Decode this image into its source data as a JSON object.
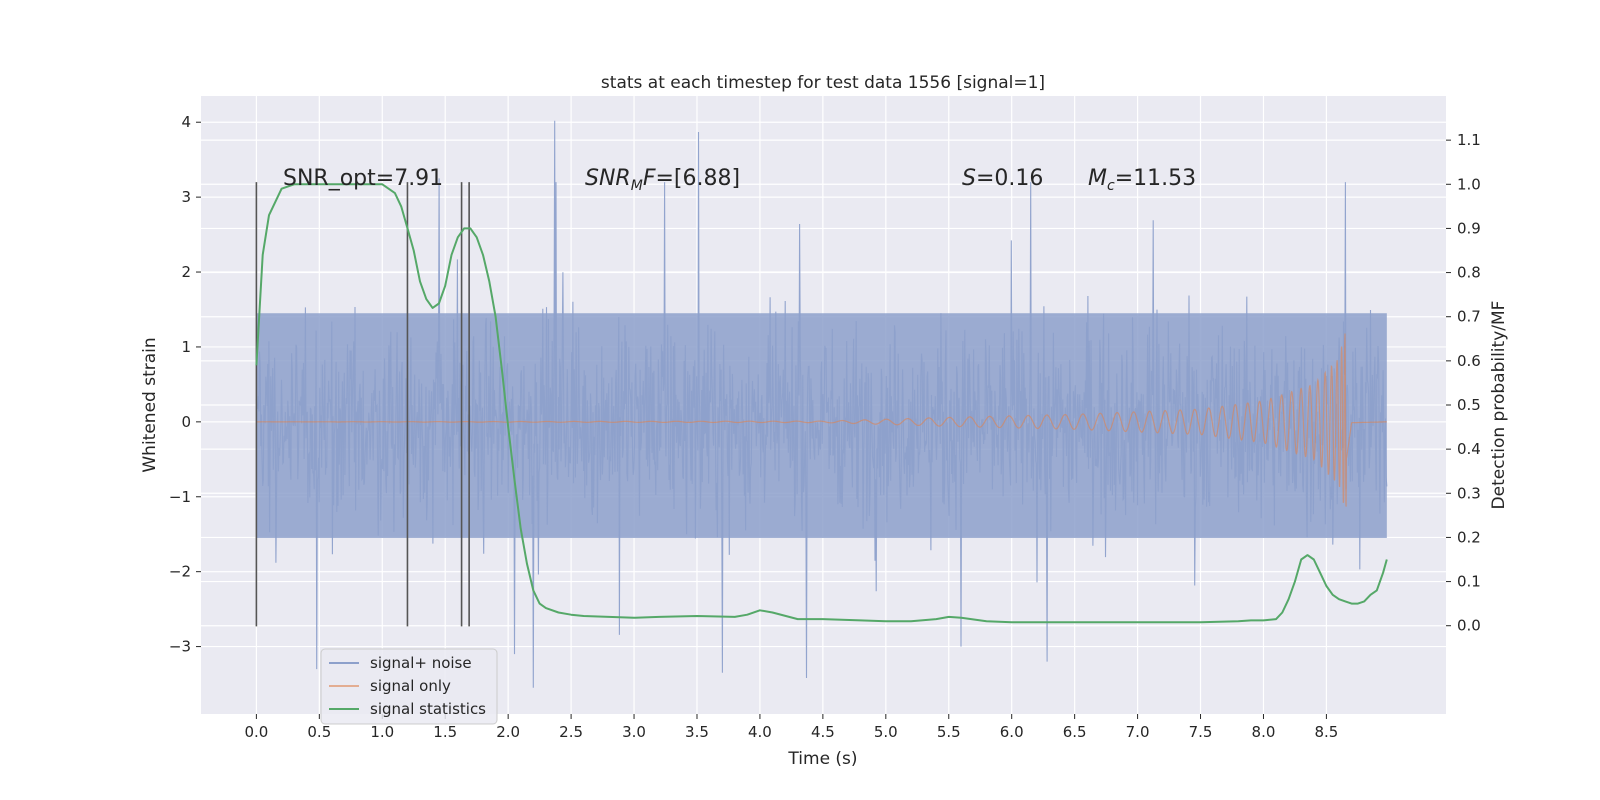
{
  "chart_data": {
    "type": "line",
    "title": "stats at each timestep for test data 1556 [signal=1]",
    "xlabel": "Time (s)",
    "ylabel": "Whitened strain",
    "ylabel_right": "Detection probability/MF",
    "xlim": [
      -0.44,
      9.45
    ],
    "ylim": [
      -3.9,
      4.35
    ],
    "ylim_right": [
      -0.2,
      1.2
    ],
    "x_ticks": [
      "0.0",
      "0.5",
      "1.0",
      "1.5",
      "2.0",
      "2.5",
      "3.0",
      "3.5",
      "4.0",
      "4.5",
      "5.0",
      "5.5",
      "6.0",
      "6.5",
      "7.0",
      "7.5",
      "8.0",
      "8.5"
    ],
    "y_ticks_left": [
      "4",
      "3",
      "2",
      "1",
      "0",
      "−1",
      "−2",
      "−3"
    ],
    "y_ticks_right": [
      "1.1",
      "1.0",
      "0.9",
      "0.8",
      "0.7",
      "0.6",
      "0.5",
      "0.4",
      "0.3",
      "0.2",
      "0.1",
      "0.0"
    ],
    "annotations": {
      "snr_opt": "SNR_opt=7.91",
      "snr_mf_italic": "SNR",
      "snr_mf_sub": "M",
      "snr_mf_italic2": "F",
      "snr_mf_rest": "=[6.88]",
      "s_italic": "S",
      "s_rest": "=0.16",
      "mc_italic": "M",
      "mc_sub": "c",
      "mc_rest": "=11.53"
    },
    "vertical_lines_x": [
      0.0,
      1.2,
      1.63,
      1.69
    ],
    "vertical_lines_range": [
      -2.73,
      3.2
    ],
    "legend": {
      "placement": "lower-left",
      "entries": [
        "signal+ noise",
        "signal only",
        "signal statistics"
      ]
    },
    "colors": {
      "noise": "#8da0cb",
      "signal": "#dd8452",
      "stats": "#55a868",
      "plot_bg": "#eaeaf2",
      "grid": "#ffffff",
      "vline": "#555555"
    },
    "noise_series": {
      "name": "signal+ noise",
      "x_range": [
        0.0,
        8.98
      ],
      "typical_envelope": [
        -1.55,
        1.45
      ],
      "peak_values": [
        {
          "x": 2.37,
          "y": 4.02
        },
        {
          "x": 3.51,
          "y": 3.87
        },
        {
          "x": 2.38,
          "y": 3.2
        },
        {
          "x": 1.45,
          "y": 3.25
        },
        {
          "x": 8.65,
          "y": 3.2
        },
        {
          "x": 2.2,
          "y": -3.55
        },
        {
          "x": 4.37,
          "y": -3.42
        },
        {
          "x": 3.7,
          "y": -3.35
        },
        {
          "x": 0.48,
          "y": -3.3
        },
        {
          "x": 6.28,
          "y": -3.2
        },
        {
          "x": 2.05,
          "y": -3.1
        },
        {
          "x": 5.6,
          "y": -3.0
        }
      ]
    },
    "signal_series": {
      "name": "signal only",
      "description_points": [
        {
          "x": 0.0,
          "amp": 0.0
        },
        {
          "x": 4.5,
          "amp": 0.01
        },
        {
          "x": 5.5,
          "amp": 0.06
        },
        {
          "x": 6.5,
          "amp": 0.1
        },
        {
          "x": 7.5,
          "amp": 0.17
        },
        {
          "x": 8.0,
          "amp": 0.28
        },
        {
          "x": 8.4,
          "amp": 0.5
        },
        {
          "x": 8.6,
          "amp": 0.85
        },
        {
          "x": 8.66,
          "amp": 1.3
        },
        {
          "x": 8.7,
          "amp": 0.03
        },
        {
          "x": 8.98,
          "amp": 0.0
        }
      ]
    },
    "stats_series": {
      "name": "signal statistics",
      "x": [
        0.0,
        0.05,
        0.1,
        0.15,
        0.2,
        0.3,
        0.4,
        0.6,
        0.8,
        1.0,
        1.05,
        1.1,
        1.15,
        1.2,
        1.25,
        1.3,
        1.35,
        1.4,
        1.45,
        1.5,
        1.55,
        1.6,
        1.65,
        1.7,
        1.75,
        1.8,
        1.85,
        1.9,
        1.95,
        2.0,
        2.05,
        2.1,
        2.15,
        2.2,
        2.25,
        2.3,
        2.4,
        2.5,
        2.6,
        2.8,
        3.0,
        3.2,
        3.5,
        3.8,
        3.9,
        4.0,
        4.1,
        4.3,
        4.5,
        4.8,
        5.0,
        5.2,
        5.4,
        5.5,
        5.6,
        5.8,
        6.0,
        6.5,
        7.0,
        7.5,
        7.8,
        7.9,
        8.0,
        8.1,
        8.15,
        8.2,
        8.25,
        8.3,
        8.35,
        8.4,
        8.45,
        8.5,
        8.55,
        8.6,
        8.65,
        8.7,
        8.75,
        8.8,
        8.85,
        8.9,
        8.95,
        8.98
      ],
      "y": [
        0.59,
        0.84,
        0.93,
        0.96,
        0.99,
        1.0,
        1.0,
        1.0,
        1.0,
        1.0,
        0.99,
        0.98,
        0.95,
        0.9,
        0.85,
        0.78,
        0.74,
        0.72,
        0.73,
        0.77,
        0.84,
        0.88,
        0.9,
        0.9,
        0.88,
        0.84,
        0.78,
        0.7,
        0.58,
        0.45,
        0.33,
        0.22,
        0.14,
        0.08,
        0.05,
        0.04,
        0.03,
        0.025,
        0.022,
        0.02,
        0.018,
        0.02,
        0.022,
        0.02,
        0.025,
        0.035,
        0.03,
        0.015,
        0.015,
        0.012,
        0.01,
        0.01,
        0.015,
        0.02,
        0.018,
        0.01,
        0.008,
        0.008,
        0.008,
        0.008,
        0.01,
        0.012,
        0.012,
        0.015,
        0.03,
        0.06,
        0.1,
        0.15,
        0.16,
        0.15,
        0.12,
        0.09,
        0.07,
        0.06,
        0.055,
        0.05,
        0.05,
        0.055,
        0.07,
        0.08,
        0.12,
        0.15
      ]
    }
  }
}
